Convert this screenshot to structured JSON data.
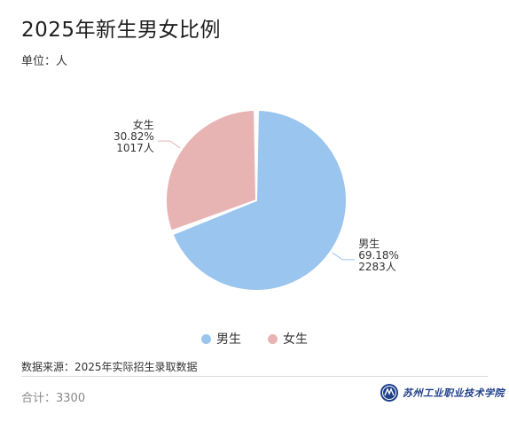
{
  "title": "2025年新生男女比例",
  "unit_label": "单位：人",
  "source_label": "数据来源：2025年实际招生录取数据",
  "total_label": "合计：3300",
  "logo_text": "苏州工业职业技术学院",
  "colors": {
    "male": "#99c5ee",
    "female": "#e8b3b3"
  },
  "chart_data": {
    "type": "pie",
    "title": "2025年新生男女比例",
    "unit": "人",
    "total": 3300,
    "slices": [
      {
        "name": "男生",
        "value": 2283,
        "percent": "69.18%",
        "value_label": "2283人"
      },
      {
        "name": "女生",
        "value": 1017,
        "percent": "30.82%",
        "value_label": "1017人"
      }
    ],
    "legend": [
      "男生",
      "女生"
    ],
    "legend_position": "bottom"
  }
}
